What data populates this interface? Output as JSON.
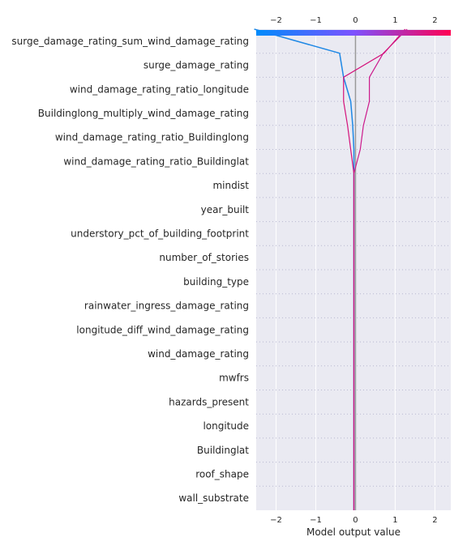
{
  "chart_data": {
    "type": "line",
    "subtype": "shap-decision-plot",
    "xlabel": "Model output value",
    "xlim": [
      -2.5,
      2.4
    ],
    "x_ticks": [
      -2,
      -1,
      0,
      1,
      2
    ],
    "x_tick_labels": [
      "−2",
      "−1",
      "0",
      "1",
      "2"
    ],
    "base_value": 0,
    "features": [
      "surge_damage_rating_sum_wind_damage_rating",
      "surge_damage_rating",
      "wind_damage_rating_ratio_longitude",
      "Buildinglong_multiply_wind_damage_rating",
      "wind_damage_rating_ratio_Buildinglong",
      "wind_damage_rating_ratio_Buildinglat",
      "mindist",
      "year_built",
      "understory_pct_of_building_footprint",
      "number_of_stories",
      "building_type",
      "rainwater_ingress_damage_rating",
      "longitude_diff_wind_damage_rating",
      "wind_damage_rating",
      "mwfrs",
      "hazards_present",
      "longitude",
      "Buildinglat",
      "roof_shape",
      "wall_substrate"
    ],
    "series": [
      {
        "color": "#1e88e5",
        "final_value": -2.55,
        "values_top_to_bottom": [
          -2.55,
          -0.4,
          -0.3,
          -0.12,
          -0.07,
          -0.04,
          -0.04,
          -0.04,
          -0.04,
          -0.04,
          -0.04,
          -0.04,
          -0.04,
          -0.04,
          -0.04,
          -0.04,
          -0.04,
          -0.04,
          -0.04,
          -0.04,
          -0.04
        ]
      },
      {
        "color": "#cc1a8c",
        "final_value": 1.3,
        "values_top_to_bottom": [
          1.3,
          0.7,
          0.35,
          0.35,
          0.2,
          0.12,
          -0.04,
          -0.04,
          -0.04,
          -0.04,
          -0.04,
          -0.04,
          -0.04,
          -0.04,
          -0.04,
          -0.04,
          -0.04,
          -0.04,
          -0.04,
          -0.04,
          -0.04
        ]
      },
      {
        "color": "#d4117a",
        "final_value": 1.25,
        "values_top_to_bottom": [
          1.25,
          0.72,
          -0.3,
          -0.3,
          -0.2,
          -0.12,
          -0.04,
          -0.04,
          -0.04,
          -0.04,
          -0.04,
          -0.04,
          -0.04,
          -0.04,
          -0.04,
          -0.04,
          -0.04,
          -0.04,
          -0.04,
          -0.04,
          -0.04
        ]
      }
    ],
    "colors": {
      "plot_background": "#eaeaf2",
      "base_line": "#999999",
      "colorbar_low": "#008bfb",
      "colorbar_mid": "#7c52ff",
      "colorbar_high": "#ff0052"
    }
  }
}
